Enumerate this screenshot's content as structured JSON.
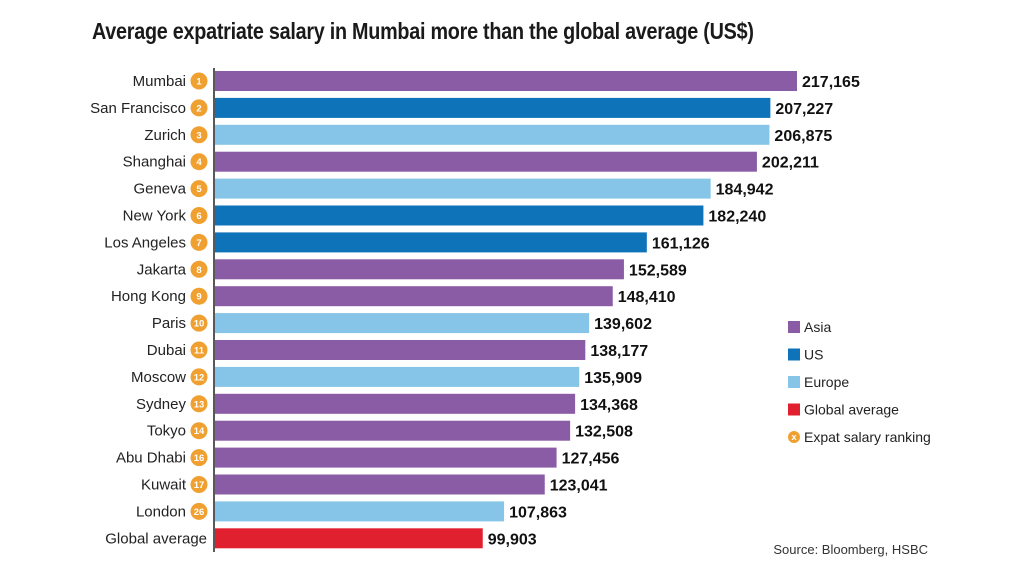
{
  "chart_data": {
    "type": "bar",
    "orientation": "horizontal",
    "title": "Average expatriate salary in Mumbai more than the global average (US$)",
    "categories": [
      "Mumbai",
      "San Francisco",
      "Zurich",
      "Shanghai",
      "Geneva",
      "New York",
      "Los Angeles",
      "Jakarta",
      "Hong Kong",
      "Paris",
      "Dubai",
      "Moscow",
      "Sydney",
      "Tokyo",
      "Abu Dhabi",
      "Kuwait",
      "London",
      "Global average"
    ],
    "values": [
      217165,
      207227,
      206875,
      202211,
      184942,
      182240,
      161126,
      152589,
      148410,
      139602,
      138177,
      135909,
      134368,
      132508,
      127456,
      123041,
      107863,
      99903
    ],
    "value_labels": [
      "217,165",
      "207,227",
      "206,875",
      "202,211",
      "184,942",
      "182,240",
      "161,126",
      "152,589",
      "148,410",
      "139,602",
      "138,177",
      "135,909",
      "134,368",
      "132,508",
      "127,456",
      "123,041",
      "107,863",
      "99,903"
    ],
    "ranks": [
      "1",
      "2",
      "3",
      "4",
      "5",
      "6",
      "7",
      "8",
      "9",
      "10",
      "11",
      "12",
      "13",
      "14",
      "16",
      "17",
      "26",
      ""
    ],
    "groups": [
      "Asia",
      "US",
      "Europe",
      "Asia",
      "Europe",
      "US",
      "US",
      "Asia",
      "Asia",
      "Europe",
      "Asia",
      "Europe",
      "Asia",
      "Asia",
      "Asia",
      "Asia",
      "Europe",
      "Global average"
    ],
    "legend": [
      {
        "label": "Asia",
        "color": "#8a5ca6",
        "marker": "square"
      },
      {
        "label": "US",
        "color": "#0f73b9",
        "marker": "square"
      },
      {
        "label": "Europe",
        "color": "#86c5e8",
        "marker": "square"
      },
      {
        "label": "Global average",
        "color": "#e0202e",
        "marker": "square"
      },
      {
        "label": "Expat salary ranking",
        "color": "#f0a030",
        "marker": "circle",
        "marker_text": "x"
      }
    ],
    "colors": {
      "Asia": "#8a5ca6",
      "US": "#0f73b9",
      "Europe": "#86c5e8",
      "Global average": "#e0202e",
      "rank_badge": "#f0a030"
    },
    "xlim": [
      0,
      217165
    ],
    "legend_position": "right",
    "grid": false,
    "source": "Source: Bloomberg, HSBC"
  }
}
